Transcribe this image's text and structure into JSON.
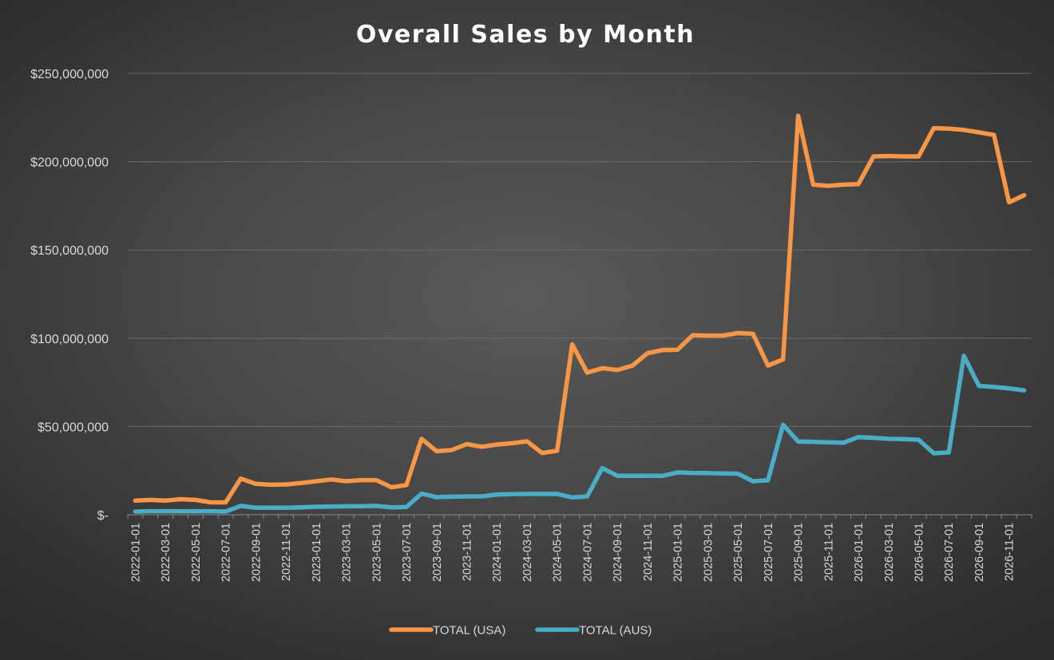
{
  "chart_data": {
    "type": "line",
    "title": "Overall Sales by Month",
    "xlabel": "",
    "ylabel": "",
    "ylim": [
      0,
      250000000
    ],
    "y_ticks": [
      0,
      50000000,
      100000000,
      150000000,
      200000000,
      250000000
    ],
    "y_tick_labels": [
      "$-",
      "$50,000,000",
      "$100,000,000",
      "$150,000,000",
      "$200,000,000",
      "$250,000,000"
    ],
    "grid": true,
    "legend_position": "bottom",
    "x": [
      "2022-01-01",
      "2022-02-01",
      "2022-03-01",
      "2022-04-01",
      "2022-05-01",
      "2022-06-01",
      "2022-07-01",
      "2022-08-01",
      "2022-09-01",
      "2022-10-01",
      "2022-11-01",
      "2022-12-01",
      "2023-01-01",
      "2023-02-01",
      "2023-03-01",
      "2023-04-01",
      "2023-05-01",
      "2023-06-01",
      "2023-07-01",
      "2023-08-01",
      "2023-09-01",
      "2023-10-01",
      "2023-11-01",
      "2023-12-01",
      "2024-01-01",
      "2024-02-01",
      "2024-03-01",
      "2024-04-01",
      "2024-05-01",
      "2024-06-01",
      "2024-07-01",
      "2024-08-01",
      "2024-09-01",
      "2024-10-01",
      "2024-11-01",
      "2024-12-01",
      "2025-01-01",
      "2025-02-01",
      "2025-03-01",
      "2025-04-01",
      "2025-05-01",
      "2025-06-01",
      "2025-07-01",
      "2025-08-01",
      "2025-09-01",
      "2025-10-01",
      "2025-11-01",
      "2025-12-01",
      "2026-01-01",
      "2026-02-01",
      "2026-03-01",
      "2026-04-01",
      "2026-05-01",
      "2026-06-01",
      "2026-07-01",
      "2026-08-01",
      "2026-09-01",
      "2026-10-01",
      "2026-11-01",
      "2026-12-01"
    ],
    "x_tick_labels": [
      "2022-01-01",
      "2022-03-01",
      "2022-05-01",
      "2022-07-01",
      "2022-09-01",
      "2022-11-01",
      "2023-01-01",
      "2023-03-01",
      "2023-05-01",
      "2023-07-01",
      "2023-09-01",
      "2023-11-01",
      "2024-01-01",
      "2024-03-01",
      "2024-05-01",
      "2024-07-01",
      "2024-09-01",
      "2024-11-01",
      "2025-01-01",
      "2025-03-01",
      "2025-05-01",
      "2025-07-01",
      "2025-09-01",
      "2025-11-01",
      "2026-01-01",
      "2026-03-01",
      "2026-05-01",
      "2026-07-01",
      "2026-09-01",
      "2026-11-01"
    ],
    "series": [
      {
        "name": "TOTAL (USA)",
        "color": "#f79646",
        "values": [
          8000000,
          8400000,
          8000000,
          8800000,
          8400000,
          7000000,
          7000000,
          20500000,
          17500000,
          17000000,
          17200000,
          18000000,
          19000000,
          20000000,
          19000000,
          19600000,
          19600000,
          15600000,
          16800000,
          43000000,
          36000000,
          36600000,
          40000000,
          38500000,
          39800000,
          40500000,
          41600000,
          35000000,
          36200000,
          96500000,
          80500000,
          83000000,
          82000000,
          84500000,
          91500000,
          93300000,
          93500000,
          101700000,
          101500000,
          101500000,
          102900000,
          102500000,
          84500000,
          88000000,
          226000000,
          187000000,
          186300000,
          187000000,
          187300000,
          203000000,
          203200000,
          203000000,
          203000000,
          219000000,
          218700000,
          218000000,
          216600000,
          215200000,
          177000000,
          181000000
        ]
      },
      {
        "name": "TOTAL (AUS)",
        "color": "#4bacc6",
        "values": [
          1800000,
          2000000,
          2000000,
          2000000,
          2000000,
          2000000,
          1800000,
          5000000,
          4000000,
          4000000,
          4000000,
          4200000,
          4500000,
          4600000,
          4800000,
          4900000,
          5000000,
          4200000,
          4400000,
          12000000,
          10000000,
          10200000,
          10400000,
          10400000,
          11500000,
          11600000,
          11800000,
          11800000,
          11800000,
          9800000,
          10400000,
          26500000,
          22000000,
          22000000,
          22000000,
          22000000,
          24000000,
          23700000,
          23600000,
          23400000,
          23300000,
          19000000,
          19500000,
          51000000,
          41500000,
          41300000,
          41000000,
          40800000,
          44000000,
          43600000,
          43000000,
          42800000,
          42500000,
          34800000,
          35300000,
          90000000,
          73000000,
          72400000,
          71600000,
          70500000
        ]
      }
    ]
  }
}
